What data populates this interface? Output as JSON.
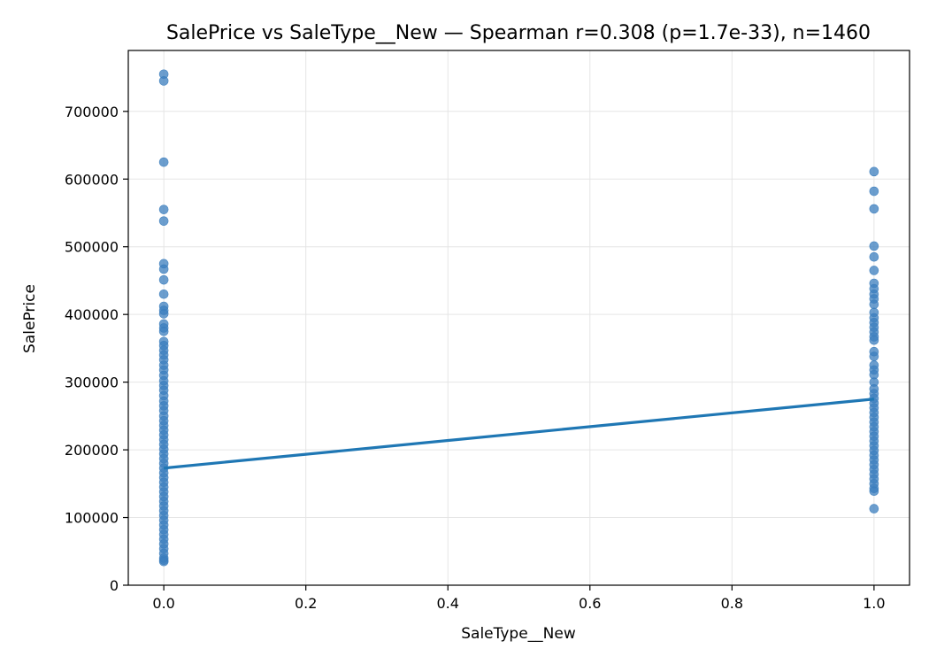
{
  "chart_data": {
    "type": "scatter",
    "title": "SalePrice vs SaleType__New — Spearman r=0.308 (p=1.7e-33), n=1460",
    "xlabel": "SaleType__New",
    "ylabel": "SalePrice",
    "xlim": [
      -0.05,
      1.05
    ],
    "ylim": [
      0,
      790000
    ],
    "xticks": [
      0.0,
      0.2,
      0.4,
      0.6,
      0.8,
      1.0
    ],
    "xtick_labels": [
      "0.0",
      "0.2",
      "0.4",
      "0.6",
      "0.8",
      "1.0"
    ],
    "yticks": [
      0,
      100000,
      200000,
      300000,
      400000,
      500000,
      600000,
      700000
    ],
    "ytick_labels": [
      "0",
      "100000",
      "200000",
      "300000",
      "400000",
      "500000",
      "600000",
      "700000"
    ],
    "grid": true,
    "point_color": "#3b7dbd",
    "line_color": "#1f77b4",
    "points": [
      {
        "x": 0,
        "y": 755000
      },
      {
        "x": 0,
        "y": 745000
      },
      {
        "x": 0,
        "y": 625000
      },
      {
        "x": 0,
        "y": 555000
      },
      {
        "x": 0,
        "y": 538000
      },
      {
        "x": 0,
        "y": 475000
      },
      {
        "x": 0,
        "y": 467000
      },
      {
        "x": 0,
        "y": 451000
      },
      {
        "x": 0,
        "y": 430000
      },
      {
        "x": 0,
        "y": 412000
      },
      {
        "x": 0,
        "y": 406000
      },
      {
        "x": 0,
        "y": 401000
      },
      {
        "x": 0,
        "y": 386000
      },
      {
        "x": 0,
        "y": 380000
      },
      {
        "x": 0,
        "y": 375000
      },
      {
        "x": 0,
        "y": 360000
      },
      {
        "x": 0,
        "y": 354000
      },
      {
        "x": 0,
        "y": 347000
      },
      {
        "x": 0,
        "y": 340000
      },
      {
        "x": 0,
        "y": 333000
      },
      {
        "x": 0,
        "y": 325000
      },
      {
        "x": 0,
        "y": 318000
      },
      {
        "x": 0,
        "y": 310000
      },
      {
        "x": 0,
        "y": 302000
      },
      {
        "x": 0,
        "y": 295000
      },
      {
        "x": 0,
        "y": 288000
      },
      {
        "x": 0,
        "y": 280000
      },
      {
        "x": 0,
        "y": 272000
      },
      {
        "x": 0,
        "y": 265000
      },
      {
        "x": 0,
        "y": 258000
      },
      {
        "x": 0,
        "y": 250000
      },
      {
        "x": 0,
        "y": 243000
      },
      {
        "x": 0,
        "y": 236000
      },
      {
        "x": 0,
        "y": 229000
      },
      {
        "x": 0,
        "y": 222000
      },
      {
        "x": 0,
        "y": 215000
      },
      {
        "x": 0,
        "y": 208000
      },
      {
        "x": 0,
        "y": 201000
      },
      {
        "x": 0,
        "y": 194000
      },
      {
        "x": 0,
        "y": 187000
      },
      {
        "x": 0,
        "y": 180000
      },
      {
        "x": 0,
        "y": 173000
      },
      {
        "x": 0,
        "y": 166000
      },
      {
        "x": 0,
        "y": 159000
      },
      {
        "x": 0,
        "y": 152000
      },
      {
        "x": 0,
        "y": 145000
      },
      {
        "x": 0,
        "y": 138000
      },
      {
        "x": 0,
        "y": 131000
      },
      {
        "x": 0,
        "y": 124000
      },
      {
        "x": 0,
        "y": 117000
      },
      {
        "x": 0,
        "y": 110000
      },
      {
        "x": 0,
        "y": 103000
      },
      {
        "x": 0,
        "y": 96000
      },
      {
        "x": 0,
        "y": 89000
      },
      {
        "x": 0,
        "y": 82000
      },
      {
        "x": 0,
        "y": 75000
      },
      {
        "x": 0,
        "y": 68000
      },
      {
        "x": 0,
        "y": 61000
      },
      {
        "x": 0,
        "y": 54000
      },
      {
        "x": 0,
        "y": 47000
      },
      {
        "x": 0,
        "y": 40000
      },
      {
        "x": 0,
        "y": 37000
      },
      {
        "x": 0,
        "y": 35000
      },
      {
        "x": 1,
        "y": 611000
      },
      {
        "x": 1,
        "y": 582000
      },
      {
        "x": 1,
        "y": 556000
      },
      {
        "x": 1,
        "y": 501000
      },
      {
        "x": 1,
        "y": 485000
      },
      {
        "x": 1,
        "y": 465000
      },
      {
        "x": 1,
        "y": 446000
      },
      {
        "x": 1,
        "y": 438000
      },
      {
        "x": 1,
        "y": 430000
      },
      {
        "x": 1,
        "y": 423000
      },
      {
        "x": 1,
        "y": 415000
      },
      {
        "x": 1,
        "y": 403000
      },
      {
        "x": 1,
        "y": 395000
      },
      {
        "x": 1,
        "y": 388000
      },
      {
        "x": 1,
        "y": 381000
      },
      {
        "x": 1,
        "y": 374000
      },
      {
        "x": 1,
        "y": 367000
      },
      {
        "x": 1,
        "y": 362000
      },
      {
        "x": 1,
        "y": 345000
      },
      {
        "x": 1,
        "y": 338000
      },
      {
        "x": 1,
        "y": 325000
      },
      {
        "x": 1,
        "y": 318000
      },
      {
        "x": 1,
        "y": 311000
      },
      {
        "x": 1,
        "y": 300000
      },
      {
        "x": 1,
        "y": 290000
      },
      {
        "x": 1,
        "y": 283000
      },
      {
        "x": 1,
        "y": 276000
      },
      {
        "x": 1,
        "y": 269000
      },
      {
        "x": 1,
        "y": 262000
      },
      {
        "x": 1,
        "y": 255000
      },
      {
        "x": 1,
        "y": 248000
      },
      {
        "x": 1,
        "y": 241000
      },
      {
        "x": 1,
        "y": 234000
      },
      {
        "x": 1,
        "y": 227000
      },
      {
        "x": 1,
        "y": 220000
      },
      {
        "x": 1,
        "y": 213000
      },
      {
        "x": 1,
        "y": 206000
      },
      {
        "x": 1,
        "y": 199000
      },
      {
        "x": 1,
        "y": 192000
      },
      {
        "x": 1,
        "y": 185000
      },
      {
        "x": 1,
        "y": 178000
      },
      {
        "x": 1,
        "y": 171000
      },
      {
        "x": 1,
        "y": 164000
      },
      {
        "x": 1,
        "y": 157000
      },
      {
        "x": 1,
        "y": 150000
      },
      {
        "x": 1,
        "y": 143000
      },
      {
        "x": 1,
        "y": 139000
      },
      {
        "x": 1,
        "y": 113000
      }
    ],
    "fit_line": [
      {
        "x": 0,
        "y": 173000
      },
      {
        "x": 1,
        "y": 275000
      }
    ]
  }
}
